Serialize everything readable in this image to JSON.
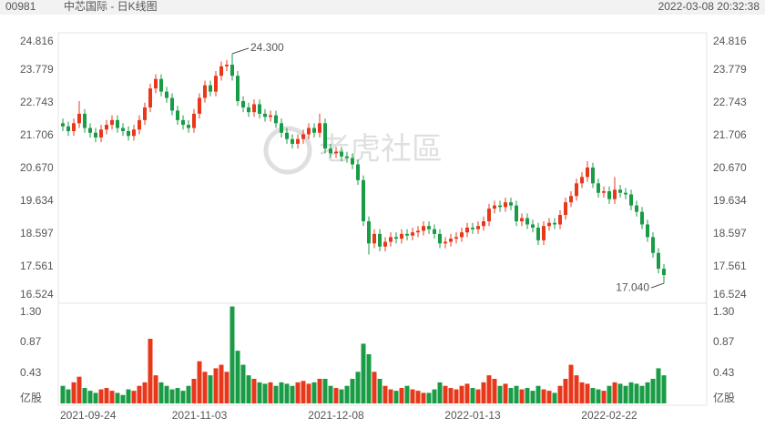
{
  "chart_data": [
    {
      "type": "candlestick",
      "code": "00981",
      "title": "中芯国际 - 日K线图",
      "timestamp": "2022-03-08 20:32:38",
      "watermark": "老虎社區",
      "up_color": "#e8381b",
      "down_color": "#1a9c46",
      "categories": [
        "2021-09-24",
        null,
        null,
        null,
        null,
        null,
        null,
        null,
        null,
        null,
        null,
        null,
        null,
        null,
        null,
        null,
        null,
        null,
        null,
        null,
        null,
        null,
        null,
        null,
        null,
        "2021-11-03",
        null,
        null,
        null,
        null,
        null,
        null,
        null,
        null,
        null,
        null,
        null,
        null,
        null,
        null,
        null,
        null,
        null,
        null,
        null,
        null,
        null,
        null,
        null,
        null,
        "2021-12-08",
        null,
        null,
        null,
        null,
        null,
        null,
        null,
        null,
        null,
        null,
        null,
        null,
        null,
        null,
        null,
        null,
        null,
        null,
        null,
        null,
        null,
        null,
        null,
        null,
        "2022-01-13",
        null,
        null,
        null,
        null,
        null,
        null,
        null,
        null,
        null,
        null,
        null,
        null,
        null,
        null,
        null,
        null,
        null,
        null,
        null,
        null,
        null,
        null,
        null,
        null,
        "2022-02-22",
        null,
        null,
        null,
        null,
        null,
        null,
        null,
        null,
        null,
        null
      ],
      "open": [
        22.1,
        22.0,
        21.85,
        22.1,
        22.4,
        21.95,
        21.8,
        21.65,
        21.9,
        22.05,
        22.2,
        21.95,
        21.85,
        21.7,
        21.9,
        22.2,
        22.6,
        23.2,
        23.5,
        23.1,
        22.9,
        22.5,
        22.2,
        22.05,
        21.95,
        22.4,
        22.9,
        23.3,
        23.1,
        23.6,
        23.9,
        23.95,
        23.6,
        22.8,
        22.6,
        22.45,
        22.7,
        22.4,
        22.3,
        22.35,
        22.1,
        21.8,
        21.6,
        21.45,
        21.6,
        21.75,
        21.95,
        21.8,
        22.1,
        21.3,
        21.15,
        21.2,
        21.05,
        21.0,
        20.8,
        20.3,
        19.0,
        18.3,
        18.6,
        18.2,
        18.35,
        18.5,
        18.45,
        18.6,
        18.55,
        18.65,
        18.7,
        18.85,
        18.75,
        18.6,
        18.3,
        18.35,
        18.45,
        18.5,
        18.65,
        18.8,
        18.75,
        18.85,
        19.0,
        19.4,
        19.5,
        19.45,
        19.6,
        19.5,
        19.0,
        19.1,
        18.9,
        18.8,
        18.4,
        18.85,
        18.95,
        18.9,
        19.2,
        19.6,
        19.8,
        20.2,
        20.4,
        20.7,
        20.2,
        19.9,
        19.95,
        19.7,
        20.0,
        19.9,
        19.85,
        19.5,
        19.3,
        18.9,
        18.5,
        18.0,
        17.5
      ],
      "high": [
        22.25,
        22.15,
        22.25,
        22.8,
        22.55,
        22.1,
        21.95,
        22.05,
        22.2,
        22.35,
        22.35,
        22.1,
        22.0,
        22.05,
        22.35,
        22.75,
        23.35,
        23.65,
        23.65,
        23.25,
        23.05,
        22.65,
        22.35,
        22.2,
        22.55,
        23.05,
        23.45,
        23.45,
        23.75,
        24.05,
        24.1,
        24.3,
        23.75,
        22.95,
        22.75,
        22.85,
        22.85,
        22.55,
        22.5,
        22.5,
        22.25,
        21.95,
        21.75,
        21.75,
        21.9,
        22.1,
        22.1,
        22.4,
        22.25,
        21.45,
        21.35,
        21.35,
        21.2,
        21.15,
        20.95,
        20.45,
        19.15,
        18.75,
        18.75,
        18.5,
        18.65,
        18.65,
        18.75,
        18.75,
        18.8,
        18.85,
        19.0,
        19.0,
        18.9,
        18.75,
        18.5,
        18.6,
        18.65,
        18.8,
        18.95,
        18.95,
        19.0,
        19.15,
        19.55,
        19.65,
        19.65,
        19.75,
        19.75,
        19.65,
        19.25,
        19.25,
        19.05,
        18.95,
        19.0,
        19.1,
        19.1,
        19.35,
        19.75,
        19.95,
        20.35,
        20.55,
        20.9,
        20.85,
        20.35,
        20.1,
        20.1,
        20.4,
        20.15,
        20.05,
        20.0,
        19.65,
        19.45,
        19.05,
        18.65,
        18.15,
        17.65
      ],
      "low": [
        21.85,
        21.7,
        21.7,
        21.95,
        21.8,
        21.65,
        21.5,
        21.5,
        21.75,
        21.9,
        21.8,
        21.7,
        21.55,
        21.55,
        21.75,
        22.05,
        22.45,
        23.05,
        22.95,
        22.75,
        22.35,
        22.05,
        21.9,
        21.8,
        21.8,
        22.25,
        22.75,
        22.95,
        22.95,
        23.45,
        23.75,
        23.45,
        22.65,
        22.45,
        22.3,
        22.3,
        22.25,
        22.15,
        22.15,
        21.95,
        21.65,
        21.45,
        21.3,
        21.3,
        21.45,
        21.6,
        21.65,
        21.65,
        21.15,
        21.0,
        21.0,
        20.9,
        20.85,
        20.65,
        20.15,
        18.85,
        17.95,
        18.15,
        18.05,
        18.05,
        18.2,
        18.3,
        18.3,
        18.4,
        18.4,
        18.5,
        18.55,
        18.6,
        18.45,
        18.15,
        18.15,
        18.2,
        18.3,
        18.35,
        18.5,
        18.6,
        18.6,
        18.7,
        18.85,
        19.25,
        19.3,
        19.3,
        19.35,
        18.85,
        18.85,
        18.75,
        18.65,
        18.25,
        18.25,
        18.7,
        18.75,
        18.75,
        19.05,
        19.45,
        19.65,
        20.05,
        20.25,
        20.05,
        19.75,
        19.75,
        19.55,
        19.55,
        19.75,
        19.7,
        19.35,
        19.15,
        18.75,
        18.35,
        17.85,
        17.35,
        17.04
      ],
      "close": [
        22.0,
        21.85,
        22.1,
        22.4,
        21.95,
        21.8,
        21.65,
        21.9,
        22.05,
        22.2,
        21.95,
        21.85,
        21.7,
        21.9,
        22.2,
        22.6,
        23.2,
        23.5,
        23.1,
        22.9,
        22.5,
        22.2,
        22.05,
        21.95,
        22.4,
        22.9,
        23.3,
        23.1,
        23.6,
        23.9,
        23.95,
        23.6,
        22.8,
        22.6,
        22.45,
        22.7,
        22.4,
        22.3,
        22.35,
        22.1,
        21.8,
        21.6,
        21.45,
        21.6,
        21.75,
        21.95,
        21.8,
        22.1,
        21.3,
        21.15,
        21.2,
        21.05,
        21.0,
        20.8,
        20.3,
        19.0,
        18.3,
        18.6,
        18.2,
        18.35,
        18.5,
        18.45,
        18.6,
        18.55,
        18.65,
        18.7,
        18.85,
        18.75,
        18.6,
        18.3,
        18.35,
        18.45,
        18.5,
        18.65,
        18.8,
        18.75,
        18.85,
        19.0,
        19.4,
        19.5,
        19.45,
        19.6,
        19.5,
        19.0,
        19.1,
        18.9,
        18.8,
        18.4,
        18.85,
        18.95,
        18.9,
        19.2,
        19.6,
        19.8,
        20.2,
        20.4,
        20.7,
        20.2,
        19.9,
        19.95,
        19.7,
        20.0,
        19.9,
        19.85,
        19.5,
        19.3,
        18.9,
        18.5,
        18.0,
        17.5,
        17.3
      ],
      "ylim": [
        16.524,
        24.816
      ],
      "yticks": [
        16.524,
        17.561,
        18.597,
        19.634,
        {
          "value": 20.67,
          "label": "20.670"
        },
        21.706,
        22.743,
        23.779,
        24.816
      ],
      "annotations": [
        {
          "value": 24.3,
          "label": "24.300"
        },
        {
          "value": 17.04,
          "label": "17.040"
        }
      ]
    },
    {
      "type": "volume",
      "y_label": "亿股",
      "values": [
        0.25,
        0.2,
        0.3,
        0.38,
        0.22,
        0.18,
        0.15,
        0.2,
        0.22,
        0.18,
        0.15,
        0.12,
        0.2,
        0.18,
        0.25,
        0.3,
        0.92,
        0.4,
        0.3,
        0.25,
        0.2,
        0.22,
        0.18,
        0.25,
        0.35,
        0.6,
        0.45,
        0.4,
        0.5,
        0.55,
        0.45,
        1.38,
        0.75,
        0.55,
        0.4,
        0.35,
        0.3,
        0.28,
        0.3,
        0.25,
        0.3,
        0.28,
        0.25,
        0.3,
        0.32,
        0.28,
        0.3,
        0.35,
        0.35,
        0.25,
        0.22,
        0.2,
        0.25,
        0.35,
        0.45,
        0.85,
        0.7,
        0.45,
        0.35,
        0.25,
        0.2,
        0.18,
        0.22,
        0.25,
        0.2,
        0.18,
        0.15,
        0.15,
        0.2,
        0.3,
        0.25,
        0.22,
        0.2,
        0.25,
        0.28,
        0.22,
        0.2,
        0.3,
        0.4,
        0.35,
        0.25,
        0.28,
        0.22,
        0.25,
        0.2,
        0.22,
        0.18,
        0.25,
        0.2,
        0.18,
        0.15,
        0.25,
        0.35,
        0.55,
        0.4,
        0.3,
        0.28,
        0.22,
        0.2,
        0.18,
        0.25,
        0.3,
        0.28,
        0.25,
        0.3,
        0.28,
        0.25,
        0.3,
        0.35,
        0.5,
        0.4
      ],
      "ylim": [
        0,
        1.4
      ],
      "yticks": [
        {
          "value": 1.3,
          "label": "1.30"
        },
        0.87,
        0.43
      ]
    }
  ]
}
